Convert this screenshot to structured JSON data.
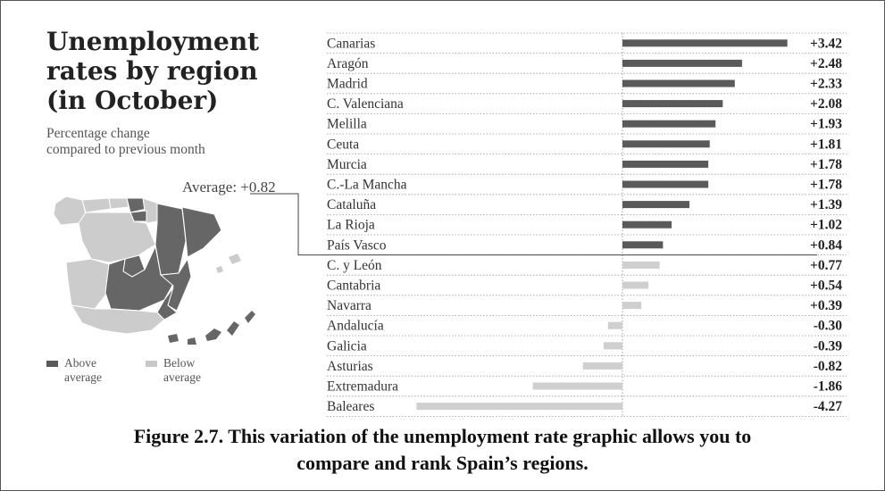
{
  "title": "Unemployment\nrates by region\n(in October)",
  "subtitle": "Percentage change\ncompared to previous month",
  "average_label": "Average: +0.82",
  "legend": [
    {
      "label": "Above\naverage",
      "color": "#5a5a5a"
    },
    {
      "label": "Below\naverage",
      "color": "#c8c8c8"
    }
  ],
  "colors": {
    "above": "#5a5a5a",
    "below": "#cfcfcf",
    "map_above": "#666666",
    "map_below": "#cccccc"
  },
  "caption": "Figure 2.7. This variation of the unemployment rate graphic allows you to\ncompare and rank Spain’s regions.",
  "chart_data": {
    "type": "bar",
    "orientation": "horizontal",
    "title": "Unemployment rates by region (in October)",
    "xlabel": "Percentage change compared to previous month",
    "ylabel": "",
    "average": 0.82,
    "xlim": [
      -4.27,
      3.42
    ],
    "categories": [
      "Canarias",
      "Aragón",
      "Madrid",
      "C. Valenciana",
      "Melilla",
      "Ceuta",
      "Murcia",
      "C.-La Mancha",
      "Cataluña",
      "La Rioja",
      "País Vasco",
      "C. y León",
      "Cantabria",
      "Navarra",
      "Andalucía",
      "Galicia",
      "Asturias",
      "Extremadura",
      "Baleares"
    ],
    "values": [
      3.42,
      2.48,
      2.33,
      2.08,
      1.93,
      1.81,
      1.78,
      1.78,
      1.39,
      1.02,
      0.84,
      0.77,
      0.54,
      0.39,
      -0.3,
      -0.39,
      -0.82,
      -1.86,
      -4.27
    ],
    "value_labels": [
      "+3.42",
      "+2.48",
      "+2.33",
      "+2.08",
      "+1.93",
      "+1.81",
      "+1.78",
      "+1.78",
      "+1.39",
      "+1.02",
      "+0.84",
      "+0.77",
      "+0.54",
      "+0.39",
      "-0.30",
      "-0.39",
      "-0.82",
      "-1.86",
      "-4.27"
    ]
  }
}
